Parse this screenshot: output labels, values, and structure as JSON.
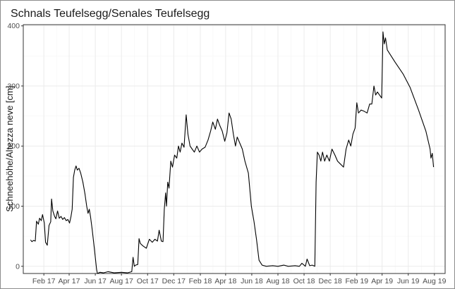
{
  "chart_data": {
    "type": "line",
    "title": "Schnals Teufelsegg/Senales Teufelsegg",
    "xlabel": "",
    "ylabel": "Schneehöhe/Altezza neve [cm]",
    "x_type": "date",
    "xlim": [
      "2016-12-15",
      "2019-08-26"
    ],
    "ylim": [
      -12,
      402
    ],
    "yticks": [
      0,
      100,
      200,
      300,
      400
    ],
    "xticks": [
      {
        "date": "2017-02-01",
        "label": "Feb 17"
      },
      {
        "date": "2017-04-01",
        "label": "Apr 17"
      },
      {
        "date": "2017-06-01",
        "label": "Jun 17"
      },
      {
        "date": "2017-08-01",
        "label": "Aug 17"
      },
      {
        "date": "2017-10-01",
        "label": "Oct 17"
      },
      {
        "date": "2017-12-01",
        "label": "Dec 17"
      },
      {
        "date": "2018-02-01",
        "label": "Feb 18"
      },
      {
        "date": "2018-04-01",
        "label": "Apr 18"
      },
      {
        "date": "2018-06-01",
        "label": "Jun 18"
      },
      {
        "date": "2018-08-01",
        "label": "Aug 18"
      },
      {
        "date": "2018-10-01",
        "label": "Oct 18"
      },
      {
        "date": "2018-12-01",
        "label": "Dec 18"
      },
      {
        "date": "2019-02-01",
        "label": "Feb 19"
      },
      {
        "date": "2019-04-01",
        "label": "Apr 19"
      },
      {
        "date": "2019-06-01",
        "label": "Jun 19"
      },
      {
        "date": "2019-08-01",
        "label": "Aug 19"
      }
    ],
    "grid": true,
    "legend": "none",
    "colors": {
      "line": "#000000",
      "grid_major": "#ebebeb",
      "grid_minor": "#f5f5f5",
      "axis": "#333333"
    },
    "series": [
      {
        "points": [
          [
            "2017-01-01",
            44
          ],
          [
            "2017-01-04",
            41
          ],
          [
            "2017-01-08",
            43
          ],
          [
            "2017-01-12",
            42
          ],
          [
            "2017-01-15",
            75
          ],
          [
            "2017-01-19",
            70
          ],
          [
            "2017-01-22",
            80
          ],
          [
            "2017-01-26",
            76
          ],
          [
            "2017-01-29",
            86
          ],
          [
            "2017-02-02",
            72
          ],
          [
            "2017-02-05",
            40
          ],
          [
            "2017-02-09",
            35
          ],
          [
            "2017-02-13",
            68
          ],
          [
            "2017-02-17",
            74
          ],
          [
            "2017-02-19",
            112
          ],
          [
            "2017-02-22",
            92
          ],
          [
            "2017-02-26",
            83
          ],
          [
            "2017-03-01",
            79
          ],
          [
            "2017-03-05",
            92
          ],
          [
            "2017-03-09",
            80
          ],
          [
            "2017-03-13",
            83
          ],
          [
            "2017-03-17",
            78
          ],
          [
            "2017-03-21",
            81
          ],
          [
            "2017-03-25",
            76
          ],
          [
            "2017-03-29",
            78
          ],
          [
            "2017-04-02",
            72
          ],
          [
            "2017-04-05",
            82
          ],
          [
            "2017-04-08",
            95
          ],
          [
            "2017-04-11",
            148
          ],
          [
            "2017-04-14",
            160
          ],
          [
            "2017-04-17",
            167
          ],
          [
            "2017-04-20",
            160
          ],
          [
            "2017-04-24",
            163
          ],
          [
            "2017-04-28",
            155
          ],
          [
            "2017-05-03",
            140
          ],
          [
            "2017-05-08",
            120
          ],
          [
            "2017-05-12",
            100
          ],
          [
            "2017-05-15",
            88
          ],
          [
            "2017-05-18",
            95
          ],
          [
            "2017-05-21",
            82
          ],
          [
            "2017-05-25",
            60
          ],
          [
            "2017-05-30",
            28
          ],
          [
            "2017-06-04",
            -5
          ],
          [
            "2017-06-06",
            -12
          ],
          [
            "2017-06-12",
            -10
          ],
          [
            "2017-06-20",
            -11
          ],
          [
            "2017-07-01",
            -9
          ],
          [
            "2017-07-15",
            -11
          ],
          [
            "2017-08-01",
            -10
          ],
          [
            "2017-08-15",
            -11
          ],
          [
            "2017-08-25",
            -9
          ],
          [
            "2017-08-28",
            15
          ],
          [
            "2017-08-31",
            0
          ],
          [
            "2017-09-03",
            2
          ],
          [
            "2017-09-08",
            3
          ],
          [
            "2017-09-11",
            46
          ],
          [
            "2017-09-14",
            38
          ],
          [
            "2017-09-20",
            34
          ],
          [
            "2017-09-28",
            30
          ],
          [
            "2017-10-05",
            45
          ],
          [
            "2017-10-12",
            40
          ],
          [
            "2017-10-18",
            45
          ],
          [
            "2017-10-24",
            42
          ],
          [
            "2017-10-28",
            60
          ],
          [
            "2017-11-02",
            42
          ],
          [
            "2017-11-06",
            41
          ],
          [
            "2017-11-09",
            95
          ],
          [
            "2017-11-12",
            122
          ],
          [
            "2017-11-14",
            100
          ],
          [
            "2017-11-17",
            140
          ],
          [
            "2017-11-20",
            130
          ],
          [
            "2017-11-24",
            175
          ],
          [
            "2017-11-28",
            165
          ],
          [
            "2017-12-03",
            185
          ],
          [
            "2017-12-08",
            180
          ],
          [
            "2017-12-12",
            200
          ],
          [
            "2017-12-16",
            190
          ],
          [
            "2017-12-20",
            205
          ],
          [
            "2017-12-25",
            198
          ],
          [
            "2017-12-30",
            252
          ],
          [
            "2018-01-03",
            220
          ],
          [
            "2018-01-08",
            200
          ],
          [
            "2018-01-13",
            195
          ],
          [
            "2018-01-18",
            190
          ],
          [
            "2018-01-24",
            200
          ],
          [
            "2018-01-30",
            190
          ],
          [
            "2018-02-05",
            195
          ],
          [
            "2018-02-12",
            198
          ],
          [
            "2018-02-19",
            210
          ],
          [
            "2018-02-25",
            225
          ],
          [
            "2018-03-02",
            240
          ],
          [
            "2018-03-08",
            228
          ],
          [
            "2018-03-13",
            245
          ],
          [
            "2018-03-18",
            235
          ],
          [
            "2018-03-24",
            225
          ],
          [
            "2018-03-30",
            208
          ],
          [
            "2018-04-04",
            222
          ],
          [
            "2018-04-09",
            255
          ],
          [
            "2018-04-14",
            245
          ],
          [
            "2018-04-19",
            220
          ],
          [
            "2018-04-24",
            200
          ],
          [
            "2018-04-28",
            215
          ],
          [
            "2018-05-04",
            205
          ],
          [
            "2018-05-10",
            195
          ],
          [
            "2018-05-16",
            175
          ],
          [
            "2018-05-24",
            155
          ],
          [
            "2018-05-31",
            100
          ],
          [
            "2018-06-06",
            75
          ],
          [
            "2018-06-12",
            45
          ],
          [
            "2018-06-18",
            10
          ],
          [
            "2018-06-25",
            2
          ],
          [
            "2018-07-05",
            0
          ],
          [
            "2018-07-20",
            1
          ],
          [
            "2018-08-01",
            0
          ],
          [
            "2018-08-15",
            2
          ],
          [
            "2018-08-25",
            0
          ],
          [
            "2018-09-10",
            1
          ],
          [
            "2018-09-20",
            0
          ],
          [
            "2018-09-26",
            5
          ],
          [
            "2018-10-04",
            0
          ],
          [
            "2018-10-08",
            12
          ],
          [
            "2018-10-14",
            1
          ],
          [
            "2018-10-20",
            2
          ],
          [
            "2018-10-26",
            0
          ],
          [
            "2018-10-29",
            140
          ],
          [
            "2018-11-01",
            190
          ],
          [
            "2018-11-05",
            185
          ],
          [
            "2018-11-09",
            175
          ],
          [
            "2018-11-13",
            190
          ],
          [
            "2018-11-18",
            175
          ],
          [
            "2018-11-23",
            185
          ],
          [
            "2018-11-29",
            175
          ],
          [
            "2018-12-05",
            195
          ],
          [
            "2018-12-12",
            185
          ],
          [
            "2018-12-18",
            175
          ],
          [
            "2018-12-25",
            170
          ],
          [
            "2019-01-01",
            165
          ],
          [
            "2019-01-07",
            195
          ],
          [
            "2019-01-13",
            210
          ],
          [
            "2019-01-18",
            200
          ],
          [
            "2019-01-23",
            220
          ],
          [
            "2019-01-28",
            230
          ],
          [
            "2019-02-01",
            272
          ],
          [
            "2019-02-05",
            255
          ],
          [
            "2019-02-11",
            260
          ],
          [
            "2019-02-18",
            258
          ],
          [
            "2019-02-25",
            255
          ],
          [
            "2019-03-03",
            270
          ],
          [
            "2019-03-08",
            270
          ],
          [
            "2019-03-13",
            300
          ],
          [
            "2019-03-17",
            285
          ],
          [
            "2019-03-21",
            290
          ],
          [
            "2019-03-26",
            285
          ],
          [
            "2019-03-31",
            280
          ],
          [
            "2019-04-03",
            390
          ],
          [
            "2019-04-06",
            370
          ],
          [
            "2019-04-09",
            380
          ],
          [
            "2019-04-13",
            360
          ],
          [
            "2019-05-01",
            340
          ],
          [
            "2019-05-20",
            320
          ],
          [
            "2019-06-05",
            298
          ],
          [
            "2019-06-25",
            260
          ],
          [
            "2019-07-12",
            225
          ],
          [
            "2019-07-22",
            195
          ],
          [
            "2019-07-24",
            180
          ],
          [
            "2019-07-27",
            188
          ],
          [
            "2019-07-30",
            165
          ]
        ]
      }
    ]
  }
}
